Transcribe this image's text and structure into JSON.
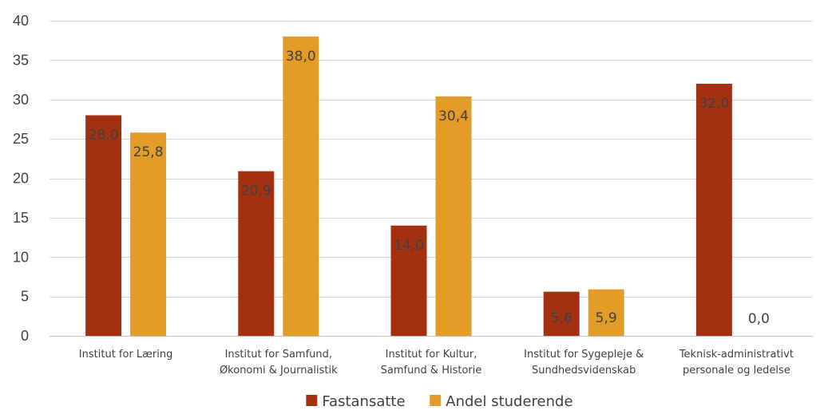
{
  "chart_data": {
    "type": "bar",
    "categories": [
      [
        "Institut for Læring"
      ],
      [
        "Institut for Samfund,",
        "Økonomi & Journalistik"
      ],
      [
        "Institut for Kultur,",
        "Samfund & Historie"
      ],
      [
        "Institut for Sygepleje &",
        "Sundhedsvidenskab"
      ],
      [
        "Teknisk-administrativt",
        "personale og ledelse"
      ]
    ],
    "series": [
      {
        "name": "Fastansatte",
        "color": "#a33111",
        "values": [
          28.0,
          20.9,
          14.0,
          5.6,
          32.0
        ],
        "labels": [
          "28,0",
          "20,9",
          "14,0",
          "5,6",
          "32,0"
        ]
      },
      {
        "name": "Andel studerende",
        "color": "#e39c28",
        "values": [
          25.8,
          38.0,
          30.4,
          5.9,
          0.0
        ],
        "labels": [
          "25,8",
          "38,0",
          "30,4",
          "5,9",
          "0,0"
        ]
      }
    ],
    "ylim": [
      0,
      40
    ],
    "yticks": [
      0,
      5,
      10,
      15,
      20,
      25,
      30,
      35,
      40
    ],
    "grid": true,
    "legend_position": "bottom",
    "title": "",
    "xlabel": "",
    "ylabel": ""
  }
}
